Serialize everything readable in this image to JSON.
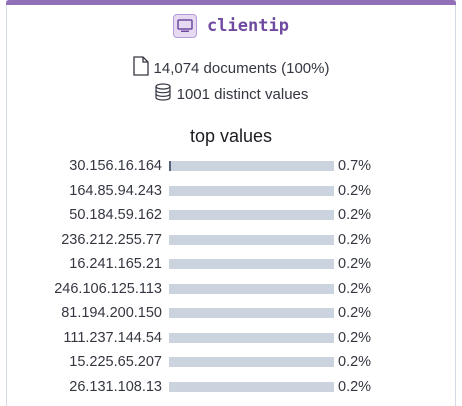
{
  "field": {
    "name": "clientip",
    "icon": "ip-field-icon"
  },
  "summary": {
    "documents": "14,074 documents (100%)",
    "distinct": "1001 distinct values"
  },
  "top_values": {
    "title": "top values",
    "rows": [
      {
        "label": "30.156.16.164",
        "pct": "0.7%",
        "fraction": 0.007
      },
      {
        "label": "164.85.94.243",
        "pct": "0.2%",
        "fraction": 0.002
      },
      {
        "label": "50.184.59.162",
        "pct": "0.2%",
        "fraction": 0.002
      },
      {
        "label": "236.212.255.77",
        "pct": "0.2%",
        "fraction": 0.002
      },
      {
        "label": "16.241.165.21",
        "pct": "0.2%",
        "fraction": 0.002
      },
      {
        "label": "246.106.125.113",
        "pct": "0.2%",
        "fraction": 0.002
      },
      {
        "label": "81.194.200.150",
        "pct": "0.2%",
        "fraction": 0.002
      },
      {
        "label": "111.237.144.54",
        "pct": "0.2%",
        "fraction": 0.002
      },
      {
        "label": "15.225.65.207",
        "pct": "0.2%",
        "fraction": 0.002
      },
      {
        "label": "26.131.108.13",
        "pct": "0.2%",
        "fraction": 0.002
      }
    ]
  },
  "colors": {
    "accent": "#9170b8",
    "bar_track": "#cbd3df",
    "bar_fill": "#54627a"
  }
}
